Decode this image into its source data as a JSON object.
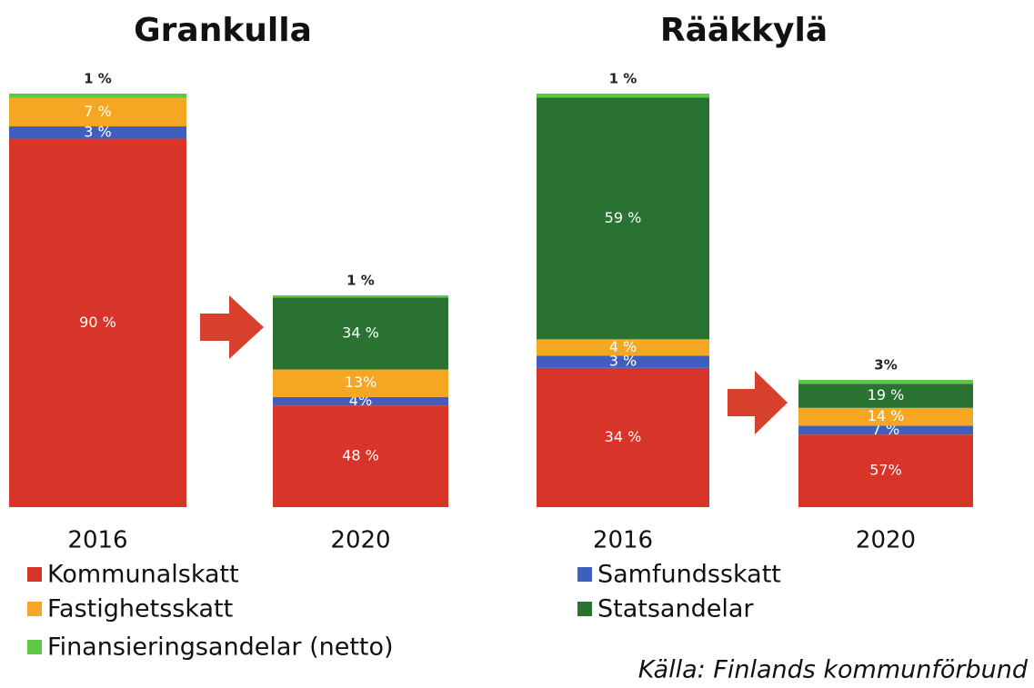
{
  "chart_data": [
    {
      "type": "bar",
      "title": "Grankulla",
      "categories": [
        "2016",
        "2020"
      ],
      "series": [
        {
          "values": [
            90,
            48
          ],
          "value_labels": [
            "90 %",
            "48 %"
          ]
        },
        {
          "values": [
            3,
            4
          ],
          "value_labels": [
            "3 %",
            "4%"
          ]
        },
        {
          "values": [
            7,
            13
          ],
          "value_labels": [
            "7 %",
            "13%"
          ]
        },
        {
          "values": [
            null,
            34
          ],
          "value_labels": [
            null,
            "34 %"
          ]
        },
        {
          "values": [
            1,
            1
          ],
          "value_labels": [
            "1 %",
            "1 %"
          ]
        }
      ]
    },
    {
      "type": "bar",
      "title": "Rääkkylä",
      "categories": [
        "2016",
        "2020"
      ],
      "series": [
        {
          "values": [
            34,
            57
          ],
          "value_labels": [
            "34 %",
            "57%"
          ]
        },
        {
          "values": [
            3,
            7
          ],
          "value_labels": [
            "3 %",
            "7 %"
          ]
        },
        {
          "values": [
            4,
            14
          ],
          "value_labels": [
            "4 %",
            "14 %"
          ]
        },
        {
          "values": [
            59,
            19
          ],
          "value_labels": [
            "59 %",
            "19 %"
          ]
        },
        {
          "values": [
            1,
            3
          ],
          "value_labels": [
            "1 %",
            "3%"
          ]
        }
      ]
    }
  ],
  "legend": [
    {
      "name": "Kommunalskatt",
      "color": "#d8352a"
    },
    {
      "name": "Samfundsskatt",
      "color": "#3e5fc0"
    },
    {
      "name": "Fastighetsskatt",
      "color": "#f5a623"
    },
    {
      "name": "Statsandelar",
      "color": "#2a7232"
    },
    {
      "name": "Finansieringsandelar (netto)",
      "color": "#5ec744"
    }
  ],
  "source": "Källa: Finlands kommunförbund"
}
